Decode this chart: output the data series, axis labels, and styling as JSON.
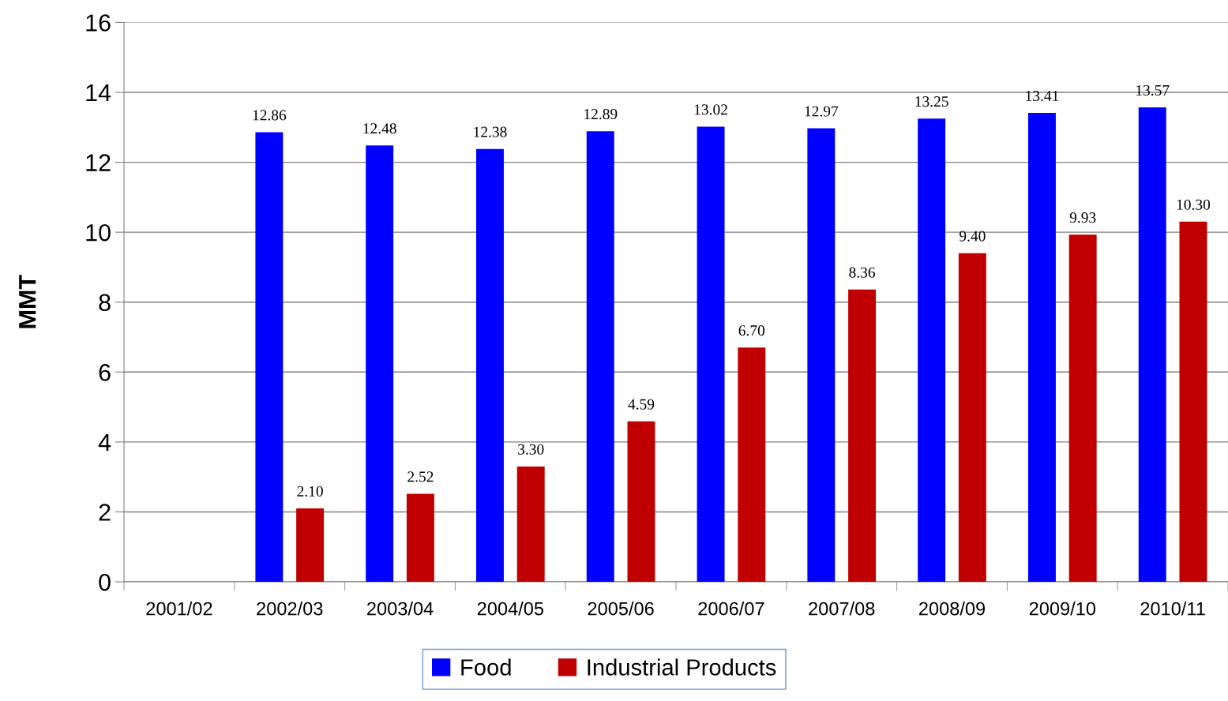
{
  "chart_data": {
    "type": "bar",
    "ylabel": "MMT",
    "categories": [
      "2001/02",
      "2002/03",
      "2003/04",
      "2004/05",
      "2005/06",
      "2006/07",
      "2007/08",
      "2008/09",
      "2009/10",
      "2010/11"
    ],
    "series": [
      {
        "name": "Food",
        "color": "#0000ff",
        "values": [
          null,
          12.86,
          12.48,
          12.38,
          12.89,
          13.02,
          12.97,
          13.25,
          13.41,
          13.57
        ],
        "value_labels": [
          null,
          "12.86",
          "12.48",
          "12.38",
          "12.89",
          "13.02",
          "12.97",
          "13.25",
          "13.41",
          "13.57"
        ]
      },
      {
        "name": "Industrial Products",
        "color": "#c00000",
        "values": [
          null,
          2.1,
          2.52,
          3.3,
          4.59,
          6.7,
          8.36,
          9.4,
          9.93,
          10.3
        ],
        "value_labels": [
          null,
          "2.10",
          "2.52",
          "3.30",
          "4.59",
          "6.70",
          "8.36",
          "9.40",
          "9.93",
          "10.30"
        ]
      }
    ],
    "ylim": [
      0,
      16
    ],
    "yticks": [
      0,
      2,
      4,
      6,
      8,
      10,
      12,
      14,
      16
    ],
    "grid": "y",
    "legend": "bottom"
  }
}
